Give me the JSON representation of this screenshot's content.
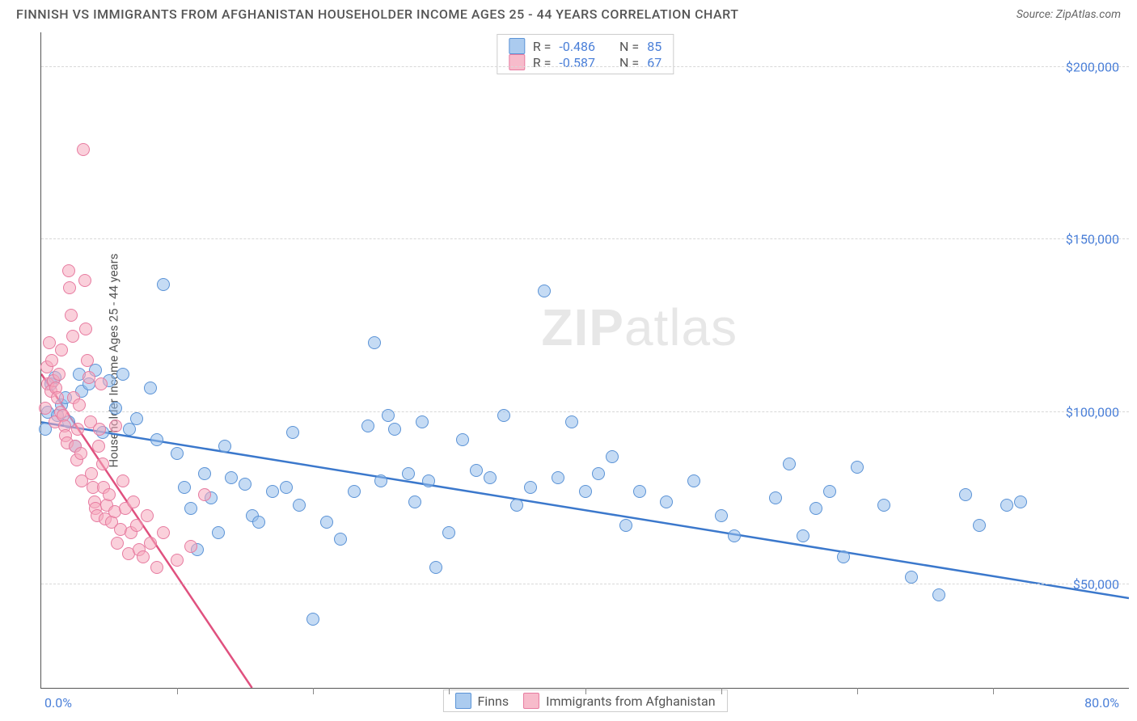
{
  "title": "FINNISH VS IMMIGRANTS FROM AFGHANISTAN HOUSEHOLDER INCOME AGES 25 - 44 YEARS CORRELATION CHART",
  "source": "Source: ZipAtlas.com",
  "watermark_bold": "ZIP",
  "watermark_rest": "atlas",
  "chart": {
    "type": "scatter",
    "ylabel": "Householder Income Ages 25 - 44 years",
    "xlim": [
      0,
      80
    ],
    "ylim": [
      20000,
      210000
    ],
    "xlabel_min": "0.0%",
    "xlabel_max": "80.0%",
    "y_ticks": [
      50000,
      100000,
      150000,
      200000
    ],
    "y_tick_labels": [
      "$50,000",
      "$100,000",
      "$150,000",
      "$200,000"
    ],
    "x_tick_positions": [
      10,
      20,
      30,
      40,
      50,
      60,
      70
    ],
    "grid_color": "#d8d8d8",
    "background_color": "#ffffff",
    "axis_color": "#555555",
    "marker_size": 16,
    "marker_opacity": 0.55,
    "line_width": 2.5,
    "series": [
      {
        "name": "Finns",
        "key": "blue",
        "fill": "#96beeb",
        "stroke": "#5b93d6",
        "R": "-0.486",
        "N": "85",
        "trend": {
          "x1": 0,
          "y1": 97000,
          "x2": 80,
          "y2": 46000,
          "color": "#3b78cc"
        },
        "points": [
          [
            0.3,
            95000
          ],
          [
            0.5,
            100000
          ],
          [
            0.7,
            108000
          ],
          [
            1.0,
            110000
          ],
          [
            1.2,
            99000
          ],
          [
            1.5,
            102000
          ],
          [
            1.8,
            104000
          ],
          [
            2.0,
            97000
          ],
          [
            2.5,
            90000
          ],
          [
            2.8,
            111000
          ],
          [
            3.0,
            106000
          ],
          [
            3.5,
            108000
          ],
          [
            4.0,
            112000
          ],
          [
            4.5,
            94000
          ],
          [
            5.0,
            109000
          ],
          [
            5.5,
            101000
          ],
          [
            6.0,
            111000
          ],
          [
            6.5,
            95000
          ],
          [
            7.0,
            98000
          ],
          [
            8.0,
            107000
          ],
          [
            8.5,
            92000
          ],
          [
            9.0,
            137000
          ],
          [
            10.0,
            88000
          ],
          [
            10.5,
            78000
          ],
          [
            11.0,
            72000
          ],
          [
            11.5,
            60000
          ],
          [
            12.0,
            82000
          ],
          [
            12.5,
            75000
          ],
          [
            13.0,
            65000
          ],
          [
            13.5,
            90000
          ],
          [
            14.0,
            81000
          ],
          [
            15.0,
            79000
          ],
          [
            15.5,
            70000
          ],
          [
            16.0,
            68000
          ],
          [
            17.0,
            77000
          ],
          [
            18.0,
            78000
          ],
          [
            18.5,
            94000
          ],
          [
            19.0,
            73000
          ],
          [
            20.0,
            40000
          ],
          [
            21.0,
            68000
          ],
          [
            22.0,
            63000
          ],
          [
            23.0,
            77000
          ],
          [
            24.0,
            96000
          ],
          [
            24.5,
            120000
          ],
          [
            25.0,
            80000
          ],
          [
            25.5,
            99000
          ],
          [
            26.0,
            95000
          ],
          [
            27.0,
            82000
          ],
          [
            27.5,
            74000
          ],
          [
            28.0,
            97000
          ],
          [
            28.5,
            80000
          ],
          [
            29.0,
            55000
          ],
          [
            30.0,
            65000
          ],
          [
            31.0,
            92000
          ],
          [
            32.0,
            83000
          ],
          [
            33.0,
            81000
          ],
          [
            34.0,
            99000
          ],
          [
            35.0,
            73000
          ],
          [
            36.0,
            78000
          ],
          [
            37.0,
            135000
          ],
          [
            38.0,
            81000
          ],
          [
            39.0,
            97000
          ],
          [
            40.0,
            77000
          ],
          [
            41.0,
            82000
          ],
          [
            42.0,
            87000
          ],
          [
            43.0,
            67000
          ],
          [
            44.0,
            77000
          ],
          [
            46.0,
            74000
          ],
          [
            48.0,
            80000
          ],
          [
            50.0,
            70000
          ],
          [
            51.0,
            64000
          ],
          [
            54.0,
            75000
          ],
          [
            55.0,
            85000
          ],
          [
            56.0,
            64000
          ],
          [
            57.0,
            72000
          ],
          [
            58.0,
            77000
          ],
          [
            59.0,
            58000
          ],
          [
            60.0,
            84000
          ],
          [
            62.0,
            73000
          ],
          [
            64.0,
            52000
          ],
          [
            66.0,
            47000
          ],
          [
            68.0,
            76000
          ],
          [
            69.0,
            67000
          ],
          [
            71.0,
            73000
          ],
          [
            72.0,
            74000
          ]
        ]
      },
      {
        "name": "Immigrants from Afghanistan",
        "key": "pink",
        "fill": "#f5aabe",
        "stroke": "#e77ba0",
        "R": "-0.587",
        "N": "67",
        "trend": {
          "x1": 0,
          "y1": 111000,
          "x2": 15.5,
          "y2": 20000,
          "color": "#e0517f"
        },
        "points": [
          [
            0.3,
            101000
          ],
          [
            0.4,
            113000
          ],
          [
            0.5,
            108000
          ],
          [
            0.6,
            120000
          ],
          [
            0.7,
            106000
          ],
          [
            0.8,
            115000
          ],
          [
            0.9,
            109000
          ],
          [
            1.0,
            97000
          ],
          [
            1.1,
            107000
          ],
          [
            1.2,
            104000
          ],
          [
            1.3,
            111000
          ],
          [
            1.4,
            100000
          ],
          [
            1.5,
            118000
          ],
          [
            1.6,
            99000
          ],
          [
            1.7,
            96000
          ],
          [
            1.8,
            93000
          ],
          [
            1.9,
            91000
          ],
          [
            2.0,
            141000
          ],
          [
            2.1,
            136000
          ],
          [
            2.2,
            128000
          ],
          [
            2.3,
            122000
          ],
          [
            2.4,
            104000
          ],
          [
            2.5,
            90000
          ],
          [
            2.6,
            86000
          ],
          [
            2.7,
            95000
          ],
          [
            2.8,
            102000
          ],
          [
            2.9,
            88000
          ],
          [
            3.0,
            80000
          ],
          [
            3.1,
            176000
          ],
          [
            3.2,
            138000
          ],
          [
            3.3,
            124000
          ],
          [
            3.4,
            115000
          ],
          [
            3.5,
            110000
          ],
          [
            3.6,
            97000
          ],
          [
            3.7,
            82000
          ],
          [
            3.8,
            78000
          ],
          [
            3.9,
            74000
          ],
          [
            4.0,
            72000
          ],
          [
            4.1,
            70000
          ],
          [
            4.2,
            90000
          ],
          [
            4.3,
            95000
          ],
          [
            4.4,
            108000
          ],
          [
            4.5,
            85000
          ],
          [
            4.6,
            78000
          ],
          [
            4.7,
            69000
          ],
          [
            4.8,
            73000
          ],
          [
            5.0,
            76000
          ],
          [
            5.2,
            68000
          ],
          [
            5.4,
            71000
          ],
          [
            5.5,
            96000
          ],
          [
            5.6,
            62000
          ],
          [
            5.8,
            66000
          ],
          [
            6.0,
            80000
          ],
          [
            6.2,
            72000
          ],
          [
            6.4,
            59000
          ],
          [
            6.6,
            65000
          ],
          [
            6.8,
            74000
          ],
          [
            7.0,
            67000
          ],
          [
            7.2,
            60000
          ],
          [
            7.5,
            58000
          ],
          [
            7.8,
            70000
          ],
          [
            8.0,
            62000
          ],
          [
            8.5,
            55000
          ],
          [
            9.0,
            65000
          ],
          [
            10.0,
            57000
          ],
          [
            11.0,
            61000
          ],
          [
            12.0,
            76000
          ]
        ]
      }
    ],
    "stats_labels": {
      "R": "R =",
      "N": "N ="
    },
    "bottom_legend": [
      "Finns",
      "Immigrants from Afghanistan"
    ]
  }
}
